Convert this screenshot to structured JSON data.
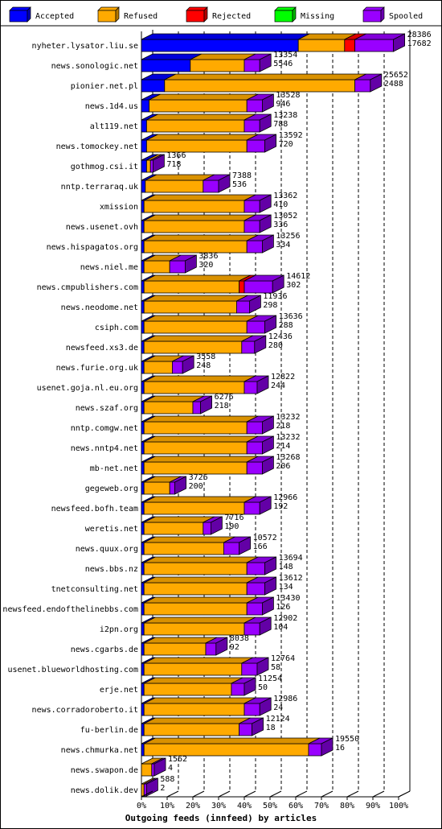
{
  "chart_data": {
    "type": "bar",
    "orientation": "horizontal-stacked-3d",
    "title": "Outgoing feeds (innfeed) by articles",
    "legend_position": "top",
    "xlim": [
      0,
      100
    ],
    "x_unit": "%",
    "x_ticks": [
      "0%",
      "10%",
      "20%",
      "30%",
      "40%",
      "50%",
      "60%",
      "70%",
      "80%",
      "90%",
      "100%"
    ],
    "grid": true,
    "series": [
      {
        "name": "Accepted",
        "color": "#0000ff"
      },
      {
        "name": "Refused",
        "color": "#ffaa00"
      },
      {
        "name": "Rejected",
        "color": "#ff0000"
      },
      {
        "name": "Missing",
        "color": "#00ff00"
      },
      {
        "name": "Spooled",
        "color": "#9900ff"
      }
    ],
    "rows": [
      {
        "label": "nyheter.lysator.liu.se",
        "total": 28386,
        "accepted": 17682,
        "segments": [
          61,
          18,
          4,
          0,
          15
        ]
      },
      {
        "label": "news.sonologic.net",
        "total": 13354,
        "accepted": 5546,
        "segments": [
          19,
          21,
          0,
          0,
          6
        ]
      },
      {
        "label": "pionier.net.pl",
        "total": 25652,
        "accepted": 2488,
        "segments": [
          9,
          74,
          0,
          0,
          6
        ]
      },
      {
        "label": "news.1d4.us",
        "total": 13528,
        "accepted": 946,
        "segments": [
          3,
          38,
          0,
          0,
          6
        ]
      },
      {
        "label": "alt119.net",
        "total": 13238,
        "accepted": 788,
        "segments": [
          2,
          38,
          0,
          0,
          6
        ]
      },
      {
        "label": "news.tomockey.net",
        "total": 13592,
        "accepted": 720,
        "segments": [
          2,
          39,
          0,
          0,
          7
        ]
      },
      {
        "label": "gothmog.csi.it",
        "total": 1366,
        "accepted": 718,
        "segments": [
          2,
          1.5,
          0,
          0,
          1
        ]
      },
      {
        "label": "nntp.terraraq.uk",
        "total": 7388,
        "accepted": 536,
        "segments": [
          1.5,
          22.5,
          0,
          0,
          6
        ]
      },
      {
        "label": "xmission",
        "total": 13362,
        "accepted": 410,
        "segments": [
          1,
          39,
          0,
          0,
          6
        ]
      },
      {
        "label": "news.usenet.ovh",
        "total": 13052,
        "accepted": 336,
        "segments": [
          1,
          39,
          0,
          0,
          6
        ]
      },
      {
        "label": "news.hispagatos.org",
        "total": 13256,
        "accepted": 334,
        "segments": [
          1,
          40,
          0,
          0,
          6
        ]
      },
      {
        "label": "news.niel.me",
        "total": 3836,
        "accepted": 320,
        "segments": [
          1,
          10,
          0,
          0,
          6
        ]
      },
      {
        "label": "news.cmpublishers.com",
        "total": 14612,
        "accepted": 302,
        "segments": [
          1,
          37,
          2,
          0,
          11
        ]
      },
      {
        "label": "news.neodome.net",
        "total": 11936,
        "accepted": 298,
        "segments": [
          1,
          36,
          0,
          0,
          5
        ]
      },
      {
        "label": "csiph.com",
        "total": 13636,
        "accepted": 288,
        "segments": [
          1,
          40,
          0,
          0,
          7
        ]
      },
      {
        "label": "newsfeed.xs3.de",
        "total": 12436,
        "accepted": 280,
        "segments": [
          1,
          38,
          0,
          0,
          5
        ]
      },
      {
        "label": "news.furie.org.uk",
        "total": 3558,
        "accepted": 248,
        "segments": [
          1,
          11,
          0,
          0,
          4
        ]
      },
      {
        "label": "usenet.goja.nl.eu.org",
        "total": 12822,
        "accepted": 244,
        "segments": [
          1,
          39,
          0,
          0,
          5
        ]
      },
      {
        "label": "news.szaf.org",
        "total": 6276,
        "accepted": 218,
        "segments": [
          1,
          19,
          0,
          0,
          3
        ]
      },
      {
        "label": "nntp.comgw.net",
        "total": 13232,
        "accepted": 218,
        "segments": [
          1,
          40,
          0,
          0,
          6
        ]
      },
      {
        "label": "news.nntp4.net",
        "total": 13232,
        "accepted": 214,
        "segments": [
          1,
          40,
          0,
          0,
          6
        ]
      },
      {
        "label": "mb-net.net",
        "total": 13268,
        "accepted": 206,
        "segments": [
          1,
          40,
          0,
          0,
          6
        ]
      },
      {
        "label": "gegeweb.org",
        "total": 3726,
        "accepted": 200,
        "segments": [
          1,
          10,
          0,
          0,
          2
        ]
      },
      {
        "label": "newsfeed.bofh.team",
        "total": 12966,
        "accepted": 192,
        "segments": [
          1,
          39,
          0,
          0,
          6
        ]
      },
      {
        "label": "weretis.net",
        "total": 7716,
        "accepted": 190,
        "segments": [
          1,
          23,
          0,
          0,
          3
        ]
      },
      {
        "label": "news.quux.org",
        "total": 10572,
        "accepted": 166,
        "segments": [
          1,
          31,
          0,
          0,
          6
        ]
      },
      {
        "label": "news.bbs.nz",
        "total": 13694,
        "accepted": 148,
        "segments": [
          1,
          40,
          0,
          0,
          7
        ]
      },
      {
        "label": "tnetconsulting.net",
        "total": 13612,
        "accepted": 134,
        "segments": [
          1,
          40,
          0,
          0,
          7
        ]
      },
      {
        "label": "newsfeed.endofthelinebbs.com",
        "total": 13430,
        "accepted": 126,
        "segments": [
          1,
          40,
          0,
          0,
          6
        ]
      },
      {
        "label": "i2pn.org",
        "total": 12902,
        "accepted": 104,
        "segments": [
          1,
          39,
          0,
          0,
          6
        ]
      },
      {
        "label": "news.cgarbs.de",
        "total": 8038,
        "accepted": 92,
        "segments": [
          1,
          24,
          0,
          0,
          4
        ]
      },
      {
        "label": "usenet.blueworldhosting.com",
        "total": 12764,
        "accepted": 58,
        "segments": [
          1,
          38,
          0,
          0,
          6
        ]
      },
      {
        "label": "erje.net",
        "total": 11254,
        "accepted": 50,
        "segments": [
          1,
          34,
          0,
          0,
          5
        ]
      },
      {
        "label": "news.corradoroberto.it",
        "total": 12986,
        "accepted": 24,
        "segments": [
          1,
          39,
          0,
          0,
          6
        ]
      },
      {
        "label": "fu-berlin.de",
        "total": 12124,
        "accepted": 18,
        "segments": [
          1,
          37,
          0,
          0,
          5
        ]
      },
      {
        "label": "news.chmurka.net",
        "total": 19550,
        "accepted": 16,
        "segments": [
          1,
          64,
          0,
          0,
          5
        ]
      },
      {
        "label": "news.swapon.de",
        "total": 1562,
        "accepted": 4,
        "segments": [
          0,
          4,
          0,
          0,
          1
        ]
      },
      {
        "label": "news.dolik.dev",
        "total": 588,
        "accepted": 2,
        "segments": [
          0,
          1,
          0,
          0,
          1
        ]
      }
    ]
  }
}
